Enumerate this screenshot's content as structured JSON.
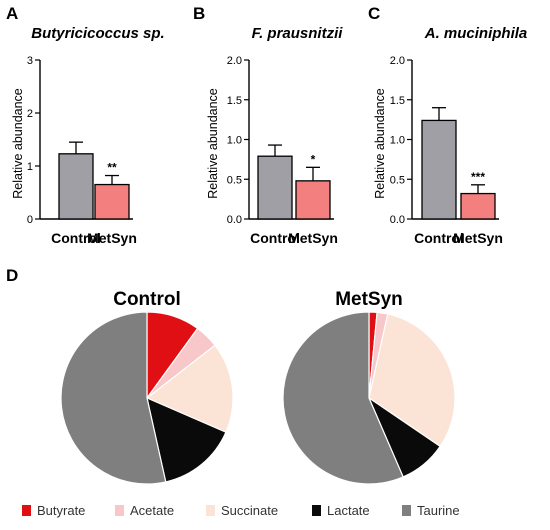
{
  "colors": {
    "control_bar": "#a09fa6",
    "metsyn_bar": "#f47f7f",
    "butyrate": "#e00f14",
    "acetate": "#f8c7c9",
    "succinate": "#fbe3d6",
    "lactate": "#0a0a0a",
    "taurine": "#7f7f7f"
  },
  "chart_data": [
    {
      "panel": "A",
      "type": "bar",
      "title": "Butyricicoccus sp.",
      "ylabel": "Relative abundance",
      "categories": [
        "Control",
        "MetSyn"
      ],
      "values": [
        1.23,
        0.65
      ],
      "errors": [
        0.22,
        0.17
      ],
      "significance": [
        "",
        "**"
      ],
      "ylim": [
        0,
        3
      ],
      "yticks": [
        "0",
        "1",
        "2",
        "3"
      ]
    },
    {
      "panel": "B",
      "type": "bar",
      "title": "F. prausnitzii",
      "ylabel": "Relative abundance",
      "categories": [
        "Control",
        "MetSyn"
      ],
      "values": [
        0.79,
        0.48
      ],
      "errors": [
        0.14,
        0.17
      ],
      "significance": [
        "",
        "*"
      ],
      "ylim": [
        0,
        2
      ],
      "yticks": [
        "0.0",
        "0.5",
        "1.0",
        "1.5",
        "2.0"
      ]
    },
    {
      "panel": "C",
      "type": "bar",
      "title": "A. muciniphila",
      "ylabel": "Relative abundance",
      "categories": [
        "Control",
        "MetSyn"
      ],
      "values": [
        1.24,
        0.32
      ],
      "errors": [
        0.16,
        0.11
      ],
      "significance": [
        "",
        "***"
      ],
      "ylim": [
        0,
        2
      ],
      "yticks": [
        "0.0",
        "0.5",
        "1.0",
        "1.5",
        "2.0"
      ]
    },
    {
      "panel": "D",
      "type": "pie",
      "title": "Control",
      "labels": [
        "Butyrate",
        "Acetate",
        "Succinate",
        "Lactate",
        "Taurine"
      ],
      "values": [
        10,
        4.5,
        17,
        15,
        53.5
      ]
    },
    {
      "panel": "D",
      "type": "pie",
      "title": "MetSyn",
      "labels": [
        "Butyrate",
        "Acetate",
        "Succinate",
        "Lactate",
        "Taurine"
      ],
      "values": [
        1.5,
        2,
        31,
        9,
        56.5
      ]
    }
  ],
  "legend": {
    "placement": "bottom",
    "items": [
      {
        "label": "Butyrate",
        "color": "#e00f14"
      },
      {
        "label": "Acetate",
        "color": "#f8c7c9"
      },
      {
        "label": "Succinate",
        "color": "#fbe3d6"
      },
      {
        "label": "Lactate",
        "color": "#0a0a0a"
      },
      {
        "label": "Taurine",
        "color": "#7f7f7f"
      }
    ]
  }
}
